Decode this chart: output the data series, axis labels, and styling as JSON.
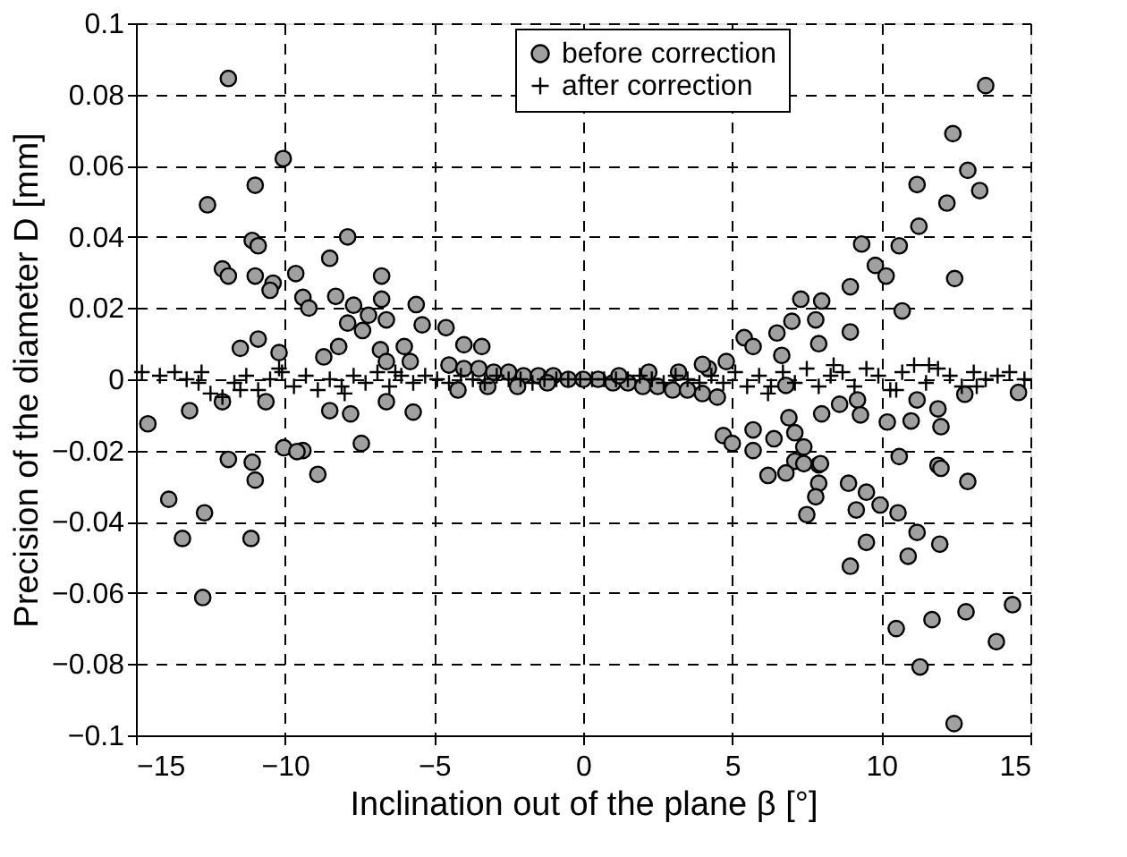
{
  "chart_data": {
    "type": "scatter",
    "xlabel": "Inclination out of the plane β [°]",
    "ylabel": "Precision of the diameter D [mm]",
    "xlim": [
      -15,
      15
    ],
    "xticks": [
      -15,
      -10,
      -5,
      0,
      5,
      10,
      15
    ],
    "ylim": [
      -0.1,
      0.1
    ],
    "yticks": [
      -0.1,
      -0.08,
      -0.06,
      -0.04,
      -0.02,
      0,
      0.02,
      0.04,
      0.06,
      0.08,
      0.1
    ],
    "grid": true,
    "legend": "top right",
    "series": [
      {
        "name": "before correction",
        "color": "#a0a0a0",
        "marker": "circle",
        "x": [
          -11.9,
          -10.06,
          -11.0,
          -12.6,
          -11.1,
          -10.9,
          -7.9,
          -8.5,
          -12.1,
          -11.9,
          -11.0,
          -10.4,
          -10.5,
          -9.64,
          -9.4,
          -9.2,
          -6.76,
          -8.3,
          -7.7,
          -7.9,
          -7.4,
          -6.76,
          -7.2,
          -6.6,
          -5.6,
          -5.4,
          -4.6,
          -10.9,
          -11.5,
          -10.2,
          -8.7,
          -8.2,
          -6.8,
          -6.0,
          -6.6,
          -5.8,
          -4.0,
          -3.4,
          -14.6,
          -13.2,
          -12.1,
          -10.64,
          -8.5,
          -7.8,
          -6.6,
          -5.7,
          -10.04,
          -9.4,
          -7.44,
          -11.9,
          -11.1,
          -9.6,
          -11.0,
          -8.9,
          -13.9,
          -12.7,
          -13.44,
          -11.14,
          -12.76,
          -4.5,
          -4.0,
          -3.5,
          -3.0,
          -2.5,
          -2.0,
          -1.5,
          -1.0,
          -0.5,
          0.0,
          0.5,
          1.0,
          1.5,
          2.0,
          2.5,
          3.0,
          3.5,
          4.0,
          4.5,
          -4.2,
          -3.2,
          -2.2,
          -1.2,
          1.2,
          2.2,
          3.2,
          4.2,
          13.5,
          12.4,
          12.9,
          13.3,
          11.2,
          12.2,
          11.26,
          10.6,
          9.34,
          9.8,
          10.16,
          8.96,
          12.46,
          7.3,
          8.0,
          7.0,
          7.8,
          7.9,
          8.96,
          10.7,
          6.5,
          5.4,
          5.7,
          6.66,
          4.8,
          4.0,
          14.6,
          12.8,
          11.2,
          11.9,
          8.0,
          8.6,
          9.2,
          9.3,
          10.2,
          11.0,
          12.0,
          6.9,
          6.8,
          5.7,
          6.4,
          7.1,
          7.4,
          7.9,
          7.1,
          10.6,
          11.9,
          4.7,
          5.0,
          5.7,
          6.2,
          6.8,
          7.4,
          7.96,
          7.9,
          7.8,
          7.5,
          12.0,
          12.9,
          8.9,
          9.5,
          9.16,
          9.96,
          10.56,
          11.2,
          11.96,
          9.5,
          10.9,
          8.96,
          10.5,
          11.7,
          12.84,
          14.4,
          13.86,
          11.3,
          12.44
        ],
        "values": [
          0.0845,
          0.062,
          0.0545,
          0.049,
          0.039,
          0.0375,
          0.04,
          0.034,
          0.031,
          0.029,
          0.029,
          0.027,
          0.025,
          0.0297,
          0.023,
          0.02,
          0.029,
          0.0233,
          0.0208,
          0.0158,
          0.0137,
          0.0225,
          0.018,
          0.0167,
          0.021,
          0.0153,
          0.0145,
          0.0113,
          0.0087,
          0.0075,
          0.0063,
          0.0092,
          0.0083,
          0.0092,
          0.005,
          0.005,
          0.0097,
          0.0092,
          -0.0125,
          -0.0088,
          -0.0063,
          -0.0063,
          -0.0088,
          -0.0097,
          -0.0063,
          -0.0092,
          -0.0192,
          -0.02,
          -0.018,
          -0.0225,
          -0.0233,
          -0.0203,
          -0.0283,
          -0.0267,
          -0.0337,
          -0.0375,
          -0.0447,
          -0.0447,
          -0.0613,
          0.004,
          0.003,
          0.003,
          0.002,
          0.002,
          0.001,
          0.001,
          0.001,
          0.0,
          0.0,
          0.0,
          -0.001,
          -0.001,
          -0.002,
          -0.002,
          -0.003,
          -0.003,
          -0.004,
          -0.005,
          -0.003,
          -0.002,
          -0.002,
          -0.001,
          0.001,
          0.002,
          0.002,
          0.003,
          0.0825,
          0.069,
          0.0587,
          0.053,
          0.0547,
          0.0495,
          0.043,
          0.0375,
          0.038,
          0.032,
          0.029,
          0.026,
          0.0283,
          0.0225,
          0.022,
          0.0163,
          0.0167,
          0.01,
          0.0133,
          0.0192,
          0.013,
          0.0117,
          0.0092,
          0.0067,
          0.005,
          0.0042,
          -0.0037,
          -0.0042,
          -0.0058,
          -0.0083,
          -0.0097,
          -0.007,
          -0.0058,
          -0.01,
          -0.012,
          -0.0117,
          -0.0133,
          -0.0108,
          -0.0017,
          -0.0142,
          -0.0167,
          -0.015,
          -0.019,
          -0.024,
          -0.023,
          -0.0217,
          -0.0242,
          -0.0158,
          -0.018,
          -0.02,
          -0.027,
          -0.0263,
          -0.0237,
          -0.0237,
          -0.0292,
          -0.033,
          -0.038,
          -0.025,
          -0.0287,
          -0.0292,
          -0.0317,
          -0.0367,
          -0.0353,
          -0.0375,
          -0.043,
          -0.0463,
          -0.0458,
          -0.0497,
          -0.0525,
          -0.07,
          -0.0675,
          -0.0653,
          -0.0633,
          -0.0737,
          -0.0808,
          -0.0967
        ]
      },
      {
        "name": "after correction",
        "color": "#000000",
        "marker": "cross",
        "x": [
          -14.8,
          -14.2,
          -13.7,
          -13.3,
          -12.9,
          -12.5,
          -12.1,
          -11.7,
          -11.3,
          -10.9,
          -10.5,
          -10.1,
          -9.7,
          -9.3,
          -8.9,
          -8.5,
          -8.1,
          -7.7,
          -7.3,
          -6.9,
          -6.5,
          -6.1,
          -5.7,
          -5.3,
          -4.9,
          -4.5,
          -4.1,
          -3.7,
          -3.3,
          -2.9,
          -2.5,
          -2.1,
          -1.7,
          -1.3,
          -0.9,
          -0.5,
          -0.1,
          0.3,
          0.7,
          1.1,
          1.5,
          1.9,
          2.3,
          2.7,
          3.1,
          3.5,
          3.9,
          4.3,
          4.7,
          5.1,
          5.5,
          5.9,
          6.3,
          6.7,
          7.1,
          7.5,
          7.9,
          8.3,
          8.7,
          9.1,
          9.5,
          9.9,
          10.3,
          10.7,
          11.1,
          11.5,
          11.9,
          12.3,
          12.7,
          13.1,
          13.5,
          13.9,
          14.3,
          14.8,
          -12.8,
          -11.5,
          -10.2,
          -8.0,
          -6.3,
          6.2,
          8.4,
          10.5,
          11.6,
          13.2
        ],
        "values": [
          0.002,
          0.001,
          0.002,
          0.0,
          -0.001,
          -0.004,
          -0.005,
          -0.001,
          0.001,
          -0.003,
          0.0,
          0.002,
          -0.002,
          0.001,
          -0.003,
          0.0,
          -0.002,
          0.001,
          -0.001,
          0.002,
          -0.002,
          0.001,
          -0.001,
          0.001,
          0.0,
          -0.001,
          0.001,
          0.0,
          -0.001,
          0.001,
          0.0,
          0.0,
          -0.001,
          0.0,
          0.0,
          0.0,
          0.0,
          0.0,
          0.0,
          0.0,
          0.0,
          0.001,
          0.0,
          -0.001,
          0.001,
          0.0,
          -0.001,
          0.001,
          -0.001,
          0.002,
          -0.002,
          0.001,
          -0.002,
          0.002,
          -0.001,
          0.003,
          -0.002,
          0.001,
          0.002,
          -0.002,
          0.003,
          0.001,
          -0.003,
          0.002,
          0.004,
          -0.001,
          0.003,
          0.001,
          -0.002,
          0.002,
          0.0,
          0.001,
          0.002,
          0.0,
          0.002,
          -0.003,
          0.003,
          -0.004,
          0.002,
          -0.004,
          0.004,
          -0.003,
          0.004,
          -0.002
        ]
      }
    ]
  }
}
